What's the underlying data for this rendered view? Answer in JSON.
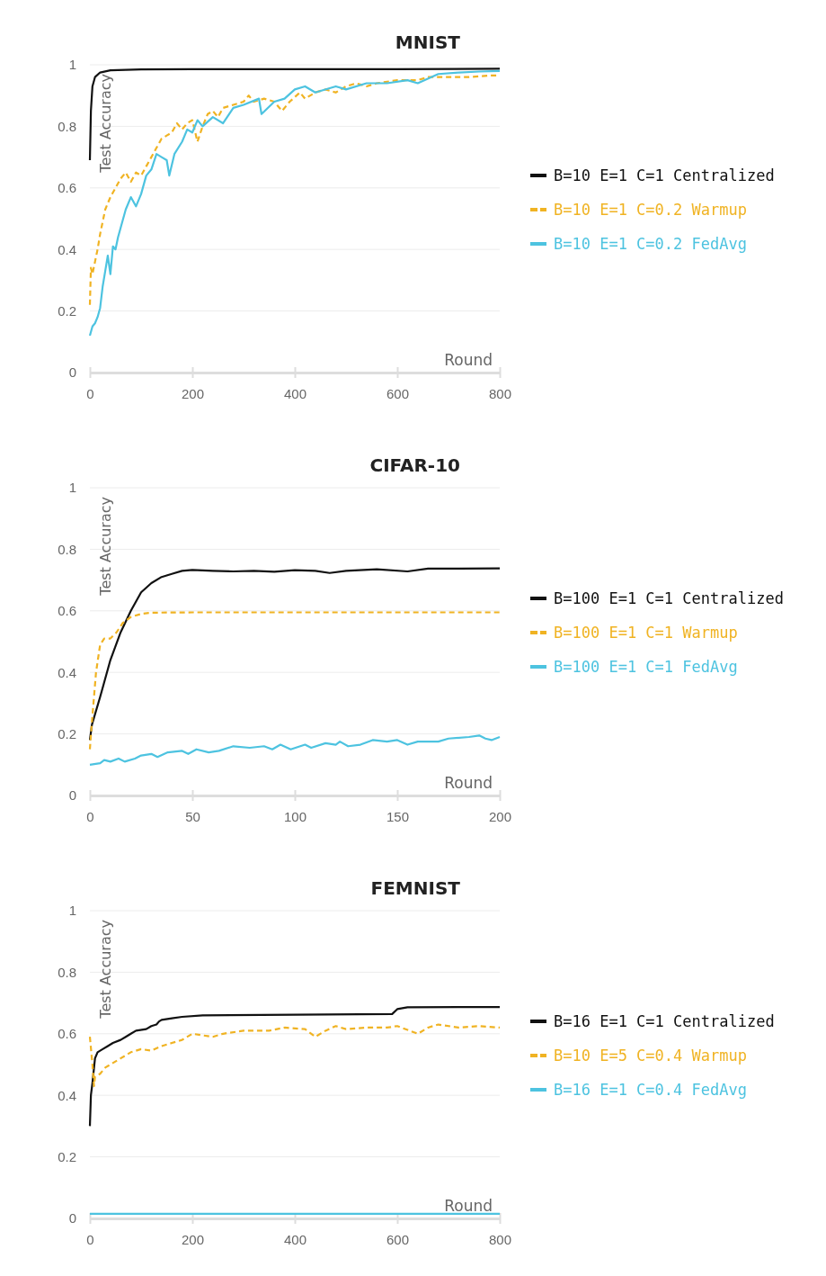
{
  "chart_data": [
    {
      "type": "line",
      "title": "MNIST",
      "xlabel": "Round",
      "ylabel": "Test Accuracy",
      "xlim": [
        0,
        800
      ],
      "xticks": [
        0,
        200,
        400,
        600,
        800
      ],
      "ylim": [
        0,
        1
      ],
      "yticks": [
        0,
        0.2,
        0.4,
        0.6,
        0.8,
        1
      ],
      "grid": "y",
      "legend": "right",
      "marker": "none",
      "series": [
        {
          "name": "B=10 E=1 C=1 Centralized",
          "color": "#111111",
          "line_style": "solid",
          "x": [
            0,
            2,
            5,
            10,
            20,
            40,
            100,
            200,
            400,
            600,
            800
          ],
          "values": [
            0.69,
            0.85,
            0.93,
            0.96,
            0.975,
            0.982,
            0.985,
            0.986,
            0.986,
            0.986,
            0.987
          ]
        },
        {
          "name": "B=10 E=1 C=0.2 Warmup",
          "color": "#f0b323",
          "line_style": "dashed",
          "x": [
            0,
            2,
            5,
            10,
            15,
            20,
            30,
            40,
            50,
            60,
            70,
            80,
            90,
            100,
            110,
            120,
            130,
            140,
            150,
            160,
            170,
            180,
            190,
            200,
            210,
            220,
            230,
            240,
            250,
            260,
            280,
            300,
            310,
            320,
            340,
            360,
            375,
            390,
            410,
            420,
            440,
            460,
            480,
            500,
            520,
            540,
            560,
            600,
            640,
            660,
            700,
            740,
            780,
            800
          ],
          "values": [
            0.22,
            0.34,
            0.32,
            0.36,
            0.4,
            0.45,
            0.53,
            0.57,
            0.6,
            0.63,
            0.65,
            0.62,
            0.65,
            0.64,
            0.67,
            0.7,
            0.73,
            0.76,
            0.77,
            0.78,
            0.81,
            0.79,
            0.81,
            0.82,
            0.75,
            0.8,
            0.84,
            0.85,
            0.83,
            0.86,
            0.87,
            0.88,
            0.9,
            0.88,
            0.89,
            0.88,
            0.85,
            0.88,
            0.91,
            0.89,
            0.91,
            0.92,
            0.91,
            0.93,
            0.94,
            0.93,
            0.94,
            0.95,
            0.95,
            0.96,
            0.96,
            0.96,
            0.965,
            0.965
          ]
        },
        {
          "name": "B=10 E=1 C=0.2 FedAvg",
          "color": "#4dc3e0",
          "line_style": "solid",
          "x": [
            0,
            5,
            10,
            15,
            20,
            25,
            30,
            35,
            40,
            45,
            50,
            55,
            60,
            70,
            80,
            90,
            100,
            110,
            120,
            130,
            140,
            150,
            155,
            165,
            180,
            190,
            200,
            210,
            220,
            240,
            260,
            280,
            300,
            330,
            335,
            360,
            380,
            400,
            420,
            440,
            480,
            500,
            540,
            580,
            620,
            640,
            680,
            720,
            760,
            800
          ],
          "values": [
            0.12,
            0.15,
            0.16,
            0.18,
            0.21,
            0.28,
            0.33,
            0.38,
            0.32,
            0.41,
            0.4,
            0.44,
            0.47,
            0.53,
            0.57,
            0.54,
            0.58,
            0.64,
            0.66,
            0.71,
            0.7,
            0.69,
            0.64,
            0.71,
            0.75,
            0.79,
            0.78,
            0.82,
            0.8,
            0.83,
            0.81,
            0.86,
            0.87,
            0.89,
            0.84,
            0.88,
            0.89,
            0.92,
            0.93,
            0.91,
            0.93,
            0.92,
            0.94,
            0.94,
            0.95,
            0.94,
            0.97,
            0.975,
            0.978,
            0.98
          ]
        }
      ]
    },
    {
      "type": "line",
      "title": "CIFAR-10",
      "xlabel": "Round",
      "ylabel": "Test Accuracy",
      "xlim": [
        0,
        200
      ],
      "xticks": [
        0,
        50,
        100,
        150,
        200
      ],
      "ylim": [
        0,
        1
      ],
      "yticks": [
        0,
        0.2,
        0.4,
        0.6,
        0.8,
        1
      ],
      "grid": "y",
      "legend": "right",
      "marker": "none",
      "series": [
        {
          "name": "B=100 E=1 C=1 Centralized",
          "color": "#111111",
          "line_style": "solid",
          "x": [
            0,
            1,
            5,
            10,
            15,
            20,
            25,
            30,
            35,
            40,
            45,
            50,
            60,
            70,
            80,
            90,
            100,
            110,
            117,
            125,
            140,
            155,
            165,
            180,
            200
          ],
          "values": [
            0.18,
            0.23,
            0.32,
            0.44,
            0.53,
            0.6,
            0.66,
            0.69,
            0.71,
            0.72,
            0.73,
            0.733,
            0.73,
            0.728,
            0.73,
            0.727,
            0.732,
            0.73,
            0.723,
            0.73,
            0.735,
            0.728,
            0.737,
            0.737,
            0.738
          ]
        },
        {
          "name": "B=100 E=1 C=1 Warmup",
          "color": "#f0b323",
          "line_style": "dashed",
          "x": [
            0,
            1,
            3,
            5,
            7,
            10,
            13,
            16,
            20,
            25,
            30,
            50,
            200
          ],
          "values": [
            0.15,
            0.24,
            0.4,
            0.49,
            0.51,
            0.51,
            0.53,
            0.56,
            0.58,
            0.59,
            0.594,
            0.595,
            0.595
          ]
        },
        {
          "name": "B=100 E=1 C=1 FedAvg",
          "color": "#4dc3e0",
          "line_style": "solid",
          "x": [
            0,
            5,
            7,
            10,
            14,
            17,
            22,
            25,
            30,
            33,
            38,
            45,
            48,
            52,
            58,
            63,
            70,
            78,
            85,
            89,
            93,
            98,
            105,
            108,
            115,
            120,
            122,
            126,
            132,
            138,
            145,
            150,
            155,
            160,
            170,
            175,
            185,
            190,
            193,
            196,
            200
          ],
          "values": [
            0.1,
            0.105,
            0.115,
            0.11,
            0.12,
            0.11,
            0.12,
            0.13,
            0.135,
            0.125,
            0.14,
            0.145,
            0.135,
            0.15,
            0.14,
            0.145,
            0.16,
            0.155,
            0.16,
            0.15,
            0.165,
            0.15,
            0.165,
            0.155,
            0.17,
            0.165,
            0.175,
            0.16,
            0.165,
            0.18,
            0.175,
            0.18,
            0.165,
            0.175,
            0.175,
            0.185,
            0.19,
            0.195,
            0.185,
            0.18,
            0.19
          ]
        }
      ]
    },
    {
      "type": "line",
      "title": "FEMNIST",
      "xlabel": "Round",
      "ylabel": "Test Accuracy",
      "xlim": [
        0,
        800
      ],
      "xticks": [
        0,
        200,
        400,
        600,
        800
      ],
      "ylim": [
        0,
        1
      ],
      "yticks": [
        0,
        0.2,
        0.4,
        0.6,
        0.8,
        1
      ],
      "grid": "y",
      "legend": "right",
      "marker": "none",
      "series": [
        {
          "name": "B=16 E=1 C=1 Centralized",
          "color": "#111111",
          "line_style": "solid",
          "x": [
            0,
            2,
            5,
            10,
            15,
            25,
            35,
            45,
            60,
            70,
            80,
            90,
            110,
            120,
            130,
            135,
            140,
            160,
            180,
            220,
            400,
            590,
            600,
            620,
            800
          ],
          "values": [
            0.3,
            0.4,
            0.44,
            0.52,
            0.54,
            0.55,
            0.56,
            0.57,
            0.58,
            0.59,
            0.6,
            0.61,
            0.615,
            0.625,
            0.63,
            0.64,
            0.645,
            0.65,
            0.655,
            0.66,
            0.662,
            0.664,
            0.68,
            0.686,
            0.687
          ]
        },
        {
          "name": "B=10 E=5 C=0.4 Warmup",
          "color": "#f0b323",
          "line_style": "dashed",
          "x": [
            0,
            5,
            8,
            10,
            20,
            30,
            40,
            60,
            80,
            100,
            120,
            140,
            160,
            180,
            200,
            240,
            260,
            300,
            350,
            380,
            420,
            440,
            460,
            480,
            500,
            540,
            580,
            600,
            640,
            660,
            680,
            720,
            760,
            800
          ],
          "values": [
            0.59,
            0.5,
            0.43,
            0.46,
            0.47,
            0.49,
            0.5,
            0.52,
            0.54,
            0.55,
            0.545,
            0.56,
            0.57,
            0.58,
            0.6,
            0.59,
            0.6,
            0.61,
            0.61,
            0.62,
            0.615,
            0.59,
            0.61,
            0.625,
            0.615,
            0.62,
            0.62,
            0.625,
            0.6,
            0.62,
            0.63,
            0.62,
            0.625,
            0.62
          ]
        },
        {
          "name": "B=16 E=1 C=0.4 FedAvg",
          "color": "#4dc3e0",
          "line_style": "solid",
          "x": [
            0,
            800
          ],
          "values": [
            0.015,
            0.015
          ]
        }
      ]
    }
  ]
}
